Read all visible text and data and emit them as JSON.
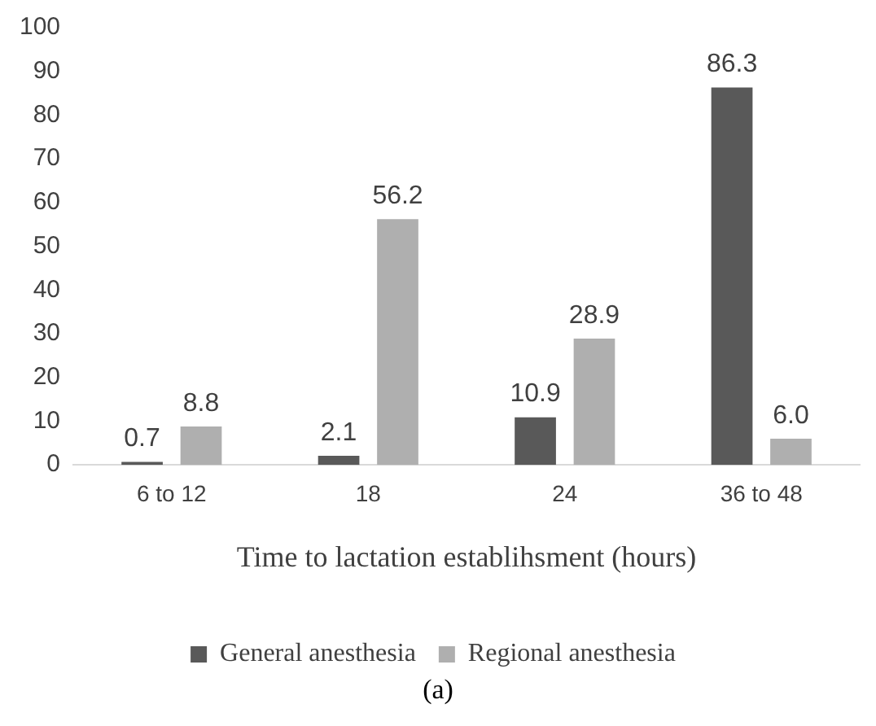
{
  "chart_data": {
    "type": "bar",
    "xlabel": "Time to lactation establihsment (hours)",
    "categories": [
      "6 to 12",
      "18",
      "24",
      "36 to 48"
    ],
    "series": [
      {
        "name": "General anesthesia",
        "color": "#595959",
        "values": [
          0.7,
          2.1,
          10.9,
          86.3
        ],
        "value_labels": [
          "0.7",
          "2.1",
          "10.9",
          "86.3"
        ]
      },
      {
        "name": "Regional anesthesia",
        "color": "#afafaf",
        "values": [
          8.8,
          56.2,
          28.9,
          6.0
        ],
        "value_labels": [
          "8.8",
          "56.2",
          "28.9",
          "6.0"
        ]
      }
    ],
    "ylim": [
      0,
      100
    ],
    "yticks": [
      0,
      10,
      20,
      30,
      40,
      50,
      60,
      70,
      80,
      90,
      100
    ],
    "grid": false,
    "legend": "bottom",
    "annotations": [
      "(a)"
    ]
  }
}
